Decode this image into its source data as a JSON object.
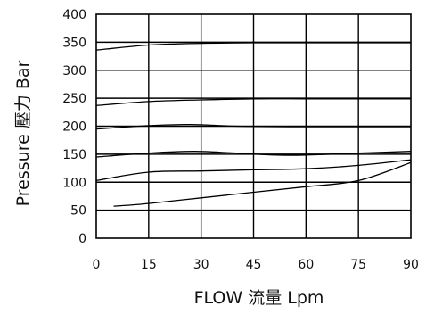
{
  "chart_data": {
    "type": "line",
    "xlabel": "FLOW 流量 Lpm",
    "ylabel": "Pressure 壓力 Bar",
    "xlim": [
      0,
      90
    ],
    "ylim": [
      0,
      400
    ],
    "xticks": [
      0,
      15,
      30,
      45,
      60,
      75,
      90
    ],
    "yticks": [
      0,
      50,
      100,
      150,
      200,
      250,
      300,
      350,
      400
    ],
    "grid": true,
    "series": [
      {
        "x": [
          0,
          15,
          30,
          45,
          60,
          75,
          90
        ],
        "y": [
          336,
          345,
          348,
          349,
          349,
          349,
          349
        ]
      },
      {
        "x": [
          0,
          15,
          30,
          45,
          60,
          75,
          90
        ],
        "y": [
          237,
          244,
          247,
          249,
          249,
          249,
          249
        ]
      },
      {
        "x": [
          0,
          15,
          27,
          40,
          55,
          75,
          90
        ],
        "y": [
          195,
          201,
          203,
          200,
          199,
          199,
          199
        ]
      },
      {
        "x": [
          0,
          15,
          28,
          40,
          55,
          75,
          90
        ],
        "y": [
          145,
          152,
          155,
          152,
          148,
          152,
          155
        ]
      },
      {
        "x": [
          0,
          15,
          30,
          45,
          60,
          75,
          90
        ],
        "y": [
          103,
          118,
          120,
          122,
          124,
          130,
          140
        ]
      },
      {
        "x": [
          5,
          15,
          30,
          45,
          60,
          75,
          90
        ],
        "y": [
          57,
          62,
          72,
          82,
          92,
          103,
          135
        ]
      }
    ]
  }
}
